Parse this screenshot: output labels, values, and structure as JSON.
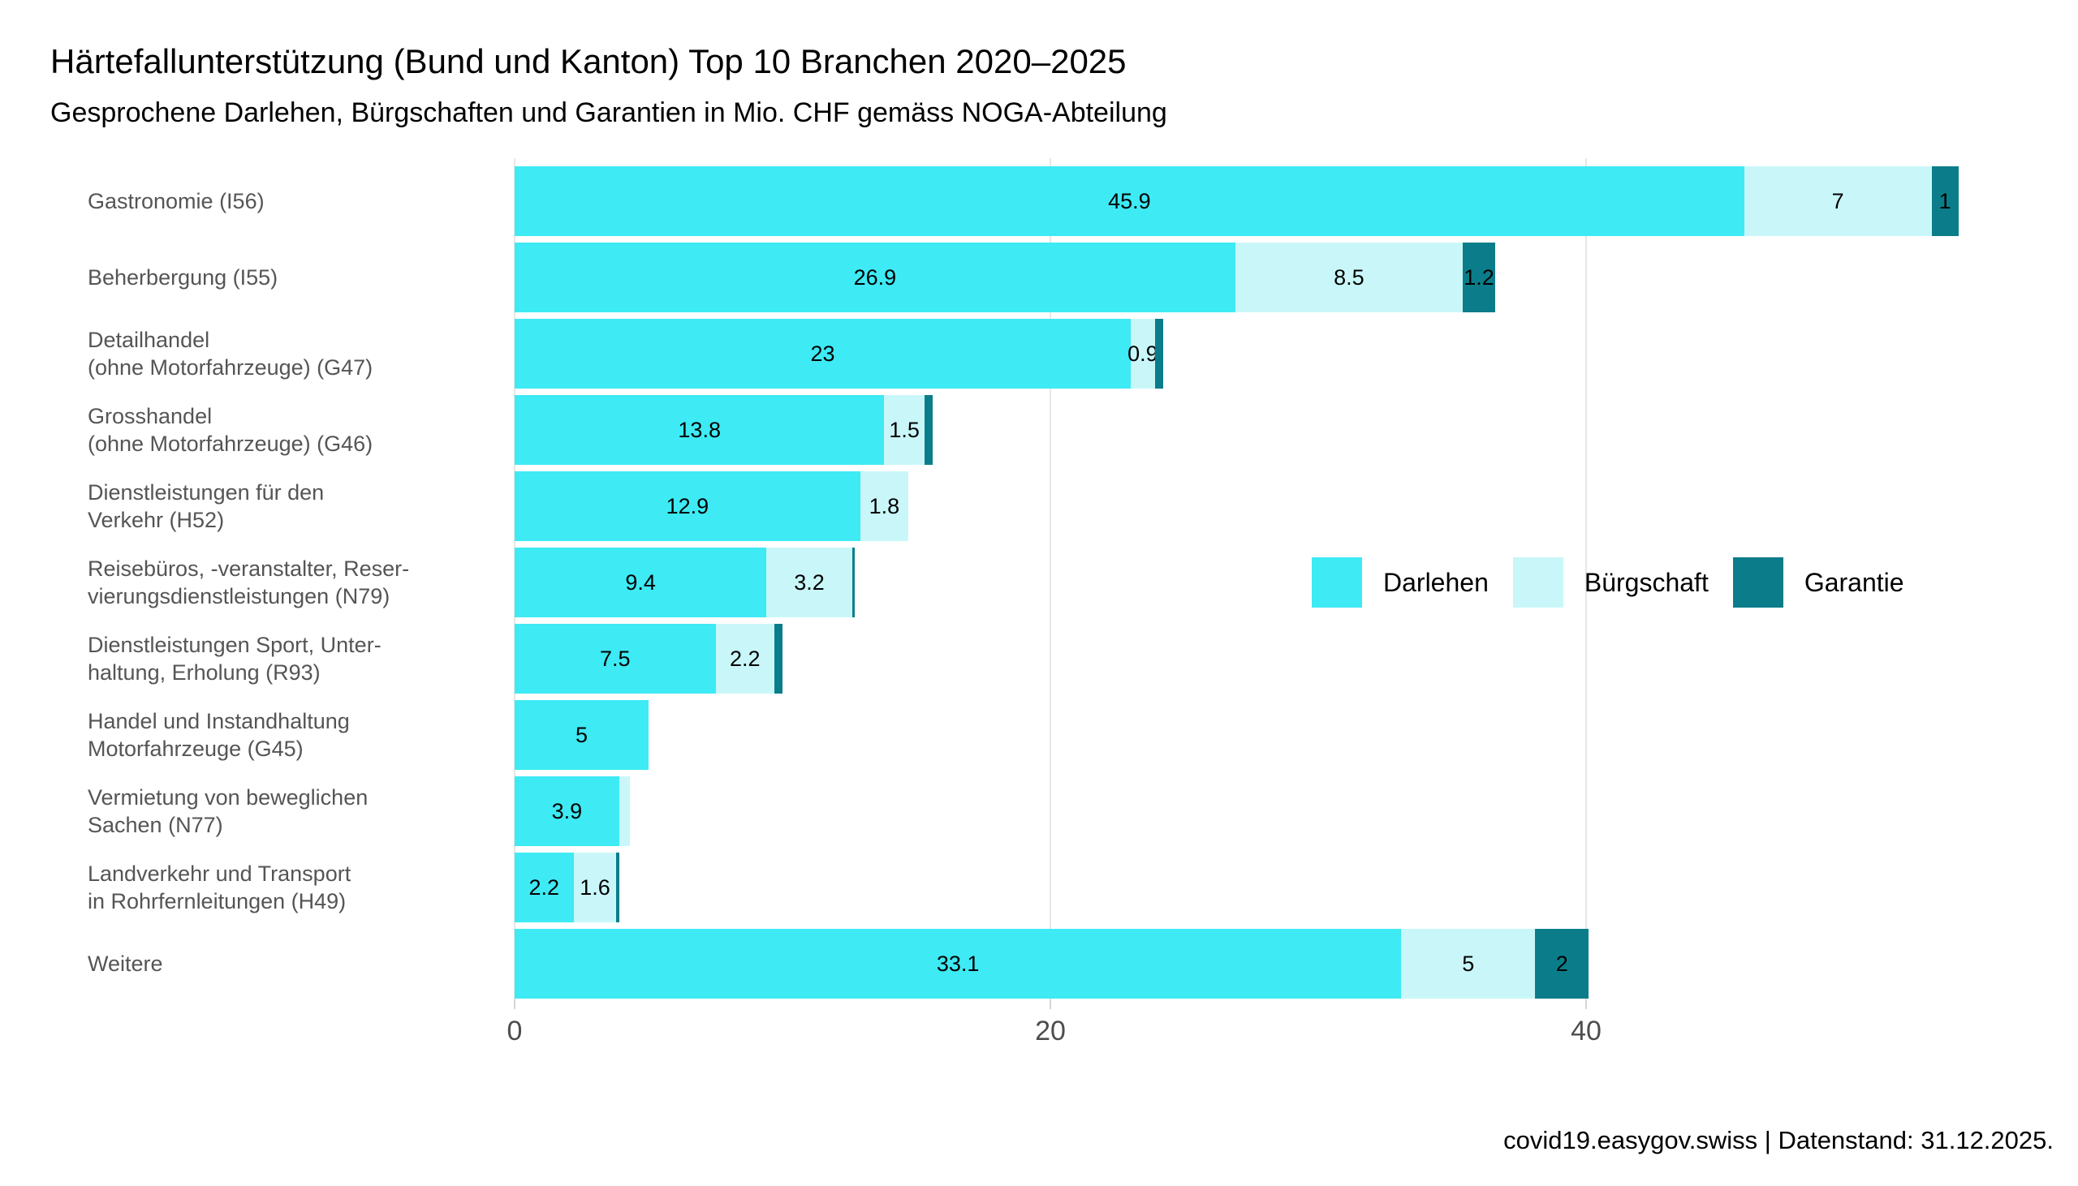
{
  "footer": "covid19.easygov.swiss | Datenstand: 31.12.2025.",
  "chart_data": {
    "type": "bar",
    "orientation": "horizontal",
    "stacked": true,
    "title": "Härtefallunterstützung (Bund und Kanton) Top 10 Branchen 2020–2025",
    "subtitle": "Gesprochene Darlehen, Bürgschaften und Garantien in Mio. CHF gemäss NOGA-Abteilung",
    "xlabel": "",
    "ylabel": "",
    "unit": "Mio. CHF",
    "xlim": [
      0,
      56.5
    ],
    "x_ticks": [
      0,
      20,
      40
    ],
    "grid": true,
    "legend_position": "right-center",
    "series_names": [
      "Darlehen",
      "Bürgschaft",
      "Garantie"
    ],
    "series_colors": [
      "#3EEAF4",
      "#C9F7F9",
      "#0B7D8A"
    ],
    "rows": [
      {
        "label": [
          "Gastronomie (I56)"
        ],
        "values": [
          45.9,
          7,
          1
        ],
        "value_labels": [
          "45.9",
          "7",
          "1"
        ]
      },
      {
        "label": [
          "Beherbergung (I55)"
        ],
        "values": [
          26.9,
          8.5,
          1.2
        ],
        "value_labels": [
          "26.9",
          "8.5",
          "1.2"
        ]
      },
      {
        "label": [
          "Detailhandel",
          "(ohne Motorfahrzeuge) (G47)"
        ],
        "values": [
          23,
          0.9,
          0.3
        ],
        "value_labels": [
          "23",
          "0.9",
          ""
        ]
      },
      {
        "label": [
          "Grosshandel",
          "(ohne Motorfahrzeuge) (G46)"
        ],
        "values": [
          13.8,
          1.5,
          0.3
        ],
        "value_labels": [
          "13.8",
          "1.5",
          ""
        ]
      },
      {
        "label": [
          "Dienstleistungen für den",
          "Verkehr (H52)"
        ],
        "values": [
          12.9,
          1.8,
          0
        ],
        "value_labels": [
          "12.9",
          "1.8",
          ""
        ]
      },
      {
        "label": [
          "Reisebüros, -veranstalter, Reser-",
          "vierungsdienstleistungen (N79)"
        ],
        "values": [
          9.4,
          3.2,
          0.1
        ],
        "value_labels": [
          "9.4",
          "3.2",
          ""
        ]
      },
      {
        "label": [
          "Dienstleistungen Sport, Unter-",
          "haltung, Erholung (R93)"
        ],
        "values": [
          7.5,
          2.2,
          0.3
        ],
        "value_labels": [
          "7.5",
          "2.2",
          ""
        ]
      },
      {
        "label": [
          "Handel und Instandhaltung",
          "Motorfahrzeuge (G45)"
        ],
        "values": [
          5,
          0,
          0
        ],
        "value_labels": [
          "5",
          "",
          ""
        ]
      },
      {
        "label": [
          "Vermietung von beweglichen",
          "Sachen (N77)"
        ],
        "values": [
          3.9,
          0.4,
          0
        ],
        "value_labels": [
          "3.9",
          "",
          ""
        ]
      },
      {
        "label": [
          "Landverkehr und Transport",
          "in Rohrfernleitungen (H49)"
        ],
        "values": [
          2.2,
          1.6,
          0.1
        ],
        "value_labels": [
          "2.2",
          "1.6",
          ""
        ]
      },
      {
        "label": [
          "Weitere"
        ],
        "values": [
          33.1,
          5,
          2
        ],
        "value_labels": [
          "33.1",
          "5",
          "2"
        ]
      }
    ]
  }
}
